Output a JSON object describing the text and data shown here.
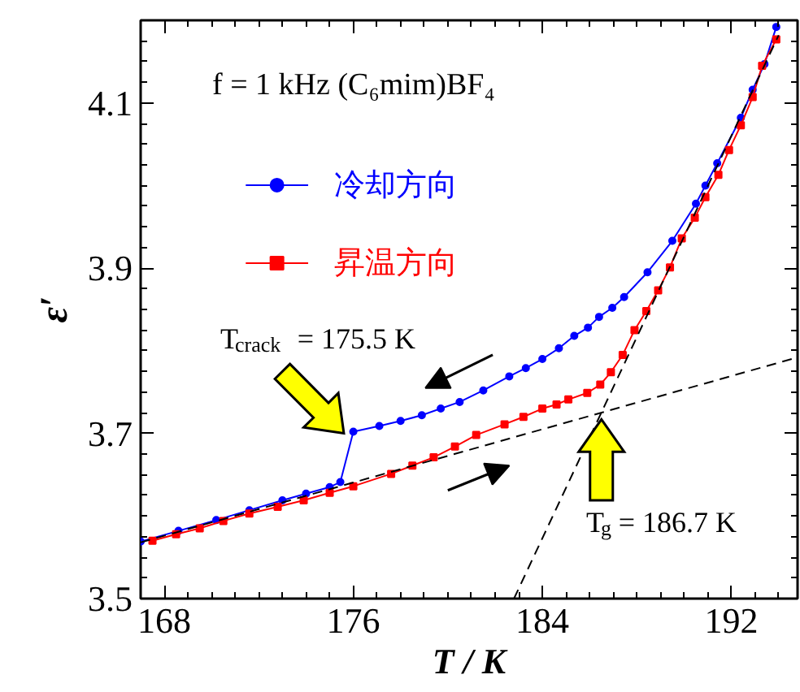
{
  "chart_data": {
    "type": "line",
    "xlabel": "T / K",
    "ylabel": "ε′",
    "xlim": [
      167,
      194.8
    ],
    "ylim": [
      3.5,
      4.2
    ],
    "xticks": [
      168,
      176,
      184,
      192
    ],
    "yticks": [
      3.5,
      3.7,
      3.9,
      4.1
    ],
    "legend": "top left",
    "grid": false,
    "annotations": [
      "f = 1 kHz   (C₆mim)BF₄",
      {
        "text": "T$_{crack}$ = 175.5 K",
        "x": 175.6,
        "y": 3.7
      },
      {
        "text": "T$_{g}$ = 186.7 K",
        "x": 186.5,
        "y": 3.717
      }
    ],
    "series": [
      {
        "name": "冷却方向",
        "color": "#0000ff",
        "marker": "circle",
        "x": [
          167.0,
          168.6,
          170.2,
          171.6,
          173.0,
          174.0,
          175.0,
          175.45,
          176.0,
          177.1,
          178.0,
          178.9,
          179.7,
          180.5,
          181.5,
          182.6,
          183.3,
          184.0,
          184.7,
          185.35,
          185.93,
          186.4,
          186.96,
          187.46,
          188.45,
          189.5,
          190.5,
          190.9,
          191.4,
          192.4,
          192.9,
          193.4,
          193.9
        ],
        "values": [
          3.569,
          3.582,
          3.595,
          3.607,
          3.619,
          3.627,
          3.635,
          3.641,
          3.702,
          3.709,
          3.715,
          3.722,
          3.73,
          3.738,
          3.752,
          3.769,
          3.779,
          3.79,
          3.803,
          3.818,
          3.828,
          3.841,
          3.852,
          3.865,
          3.895,
          3.933,
          3.978,
          4.0,
          4.027,
          4.082,
          4.116,
          4.147,
          4.192
        ]
      },
      {
        "name": "昇温方向",
        "color": "#ff0000",
        "marker": "square",
        "x": [
          167.5,
          168.5,
          169.5,
          170.5,
          171.6,
          172.8,
          173.9,
          175.0,
          176.0,
          177.6,
          178.5,
          179.4,
          180.3,
          181.2,
          182.4,
          183.2,
          184.0,
          184.6,
          185.1,
          185.9,
          186.45,
          186.9,
          187.4,
          187.9,
          188.4,
          188.9,
          189.4,
          189.9,
          190.45,
          190.9,
          191.45,
          191.9,
          192.4,
          192.9,
          193.3,
          193.9
        ],
        "values": [
          3.57,
          3.578,
          3.585,
          3.594,
          3.603,
          3.611,
          3.619,
          3.628,
          3.636,
          3.651,
          3.661,
          3.671,
          3.684,
          3.698,
          3.711,
          3.72,
          3.73,
          3.735,
          3.741,
          3.749,
          3.759,
          3.774,
          3.795,
          3.825,
          3.848,
          3.873,
          3.901,
          3.936,
          3.961,
          3.986,
          4.013,
          4.043,
          4.073,
          4.107,
          4.145,
          4.177
        ]
      },
      {
        "type": "line",
        "color": "#000000",
        "line_style": "dashed",
        "marker": "none",
        "x": [
          167.0,
          194.8
        ],
        "values": [
          3.568,
          3.792
        ]
      },
      {
        "type": "line",
        "color": "#000000",
        "line_style": "dashed",
        "marker": "none",
        "x": [
          182.8,
          194.0
        ],
        "values": [
          3.5,
          4.182
        ]
      }
    ]
  }
}
